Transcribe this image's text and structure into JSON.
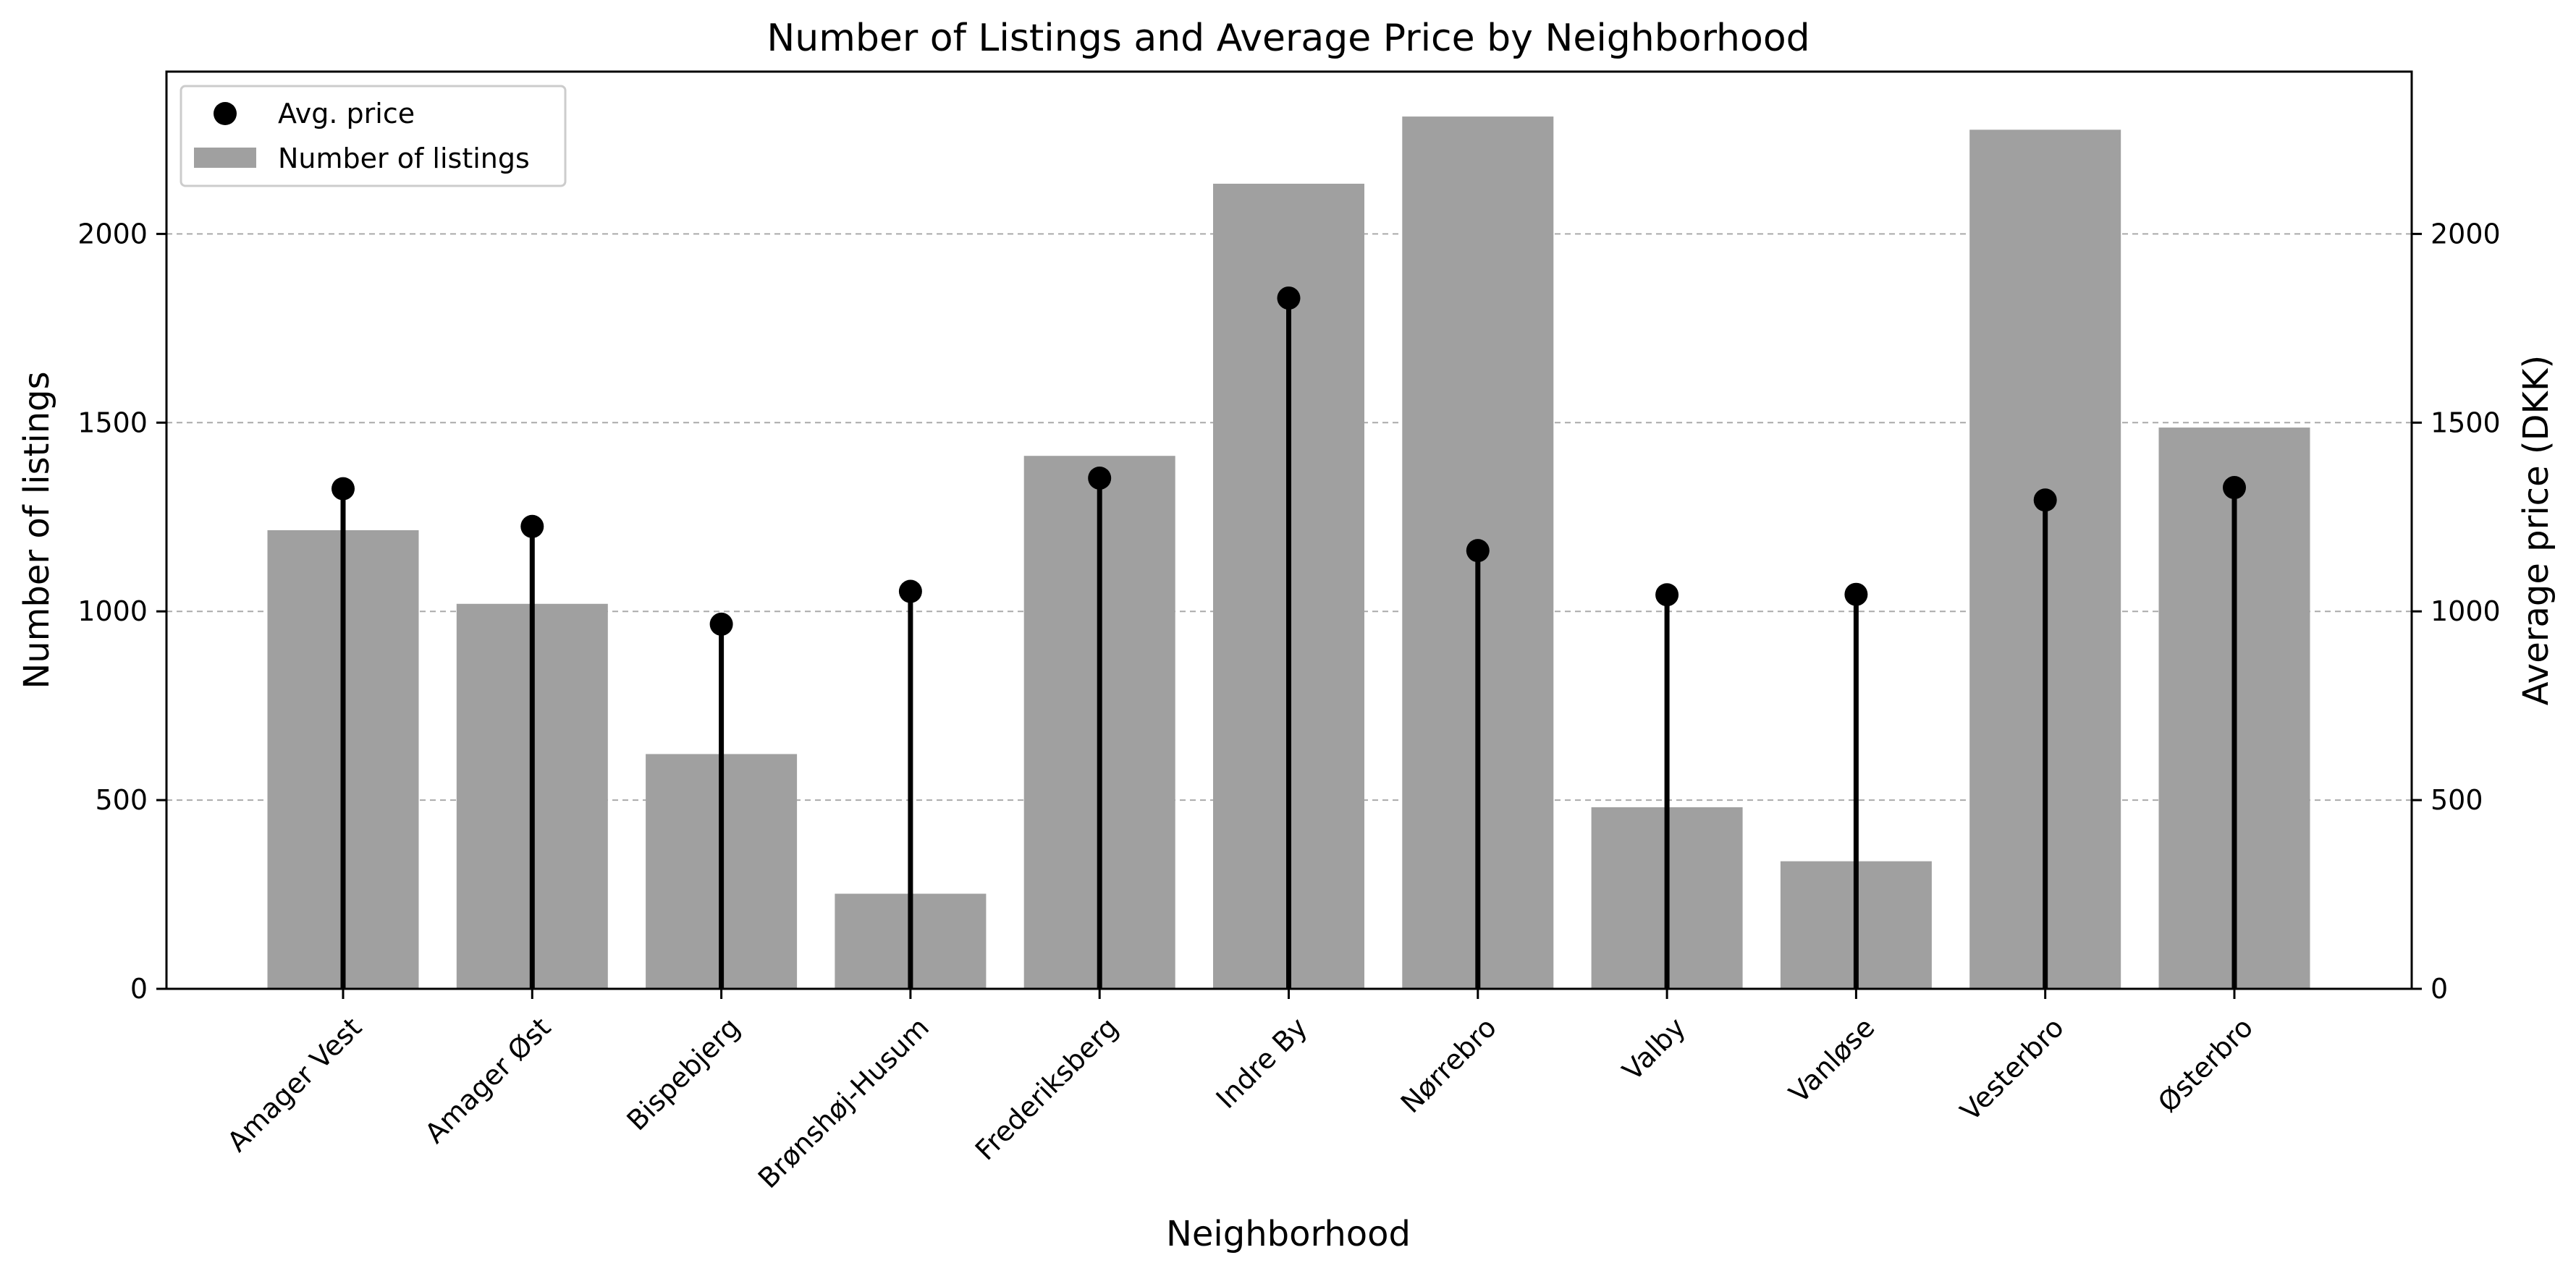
{
  "chart_data": {
    "type": "bar",
    "title": "Number of Listings and Average Price by Neighborhood",
    "xlabel": "Neighborhood",
    "ylabel_left": "Number of listings",
    "ylabel_right": "Average price (DKK)",
    "categories": [
      "Amager Vest",
      "Amager Øst",
      "Bispebjerg",
      "Brønshøj-Husum",
      "Frederiksberg",
      "Indre By",
      "Nørrebro",
      "Valby",
      "Vanløse",
      "Vesterbro",
      "Østerbro"
    ],
    "series": [
      {
        "name": "Number of listings",
        "axis": "left",
        "kind": "bar",
        "color": "#a0a0a0",
        "values": [
          1215,
          1020,
          622,
          252,
          1412,
          2133,
          2311,
          481,
          338,
          2276,
          1487
        ]
      },
      {
        "name": "Avg. price",
        "axis": "right",
        "kind": "lollipop",
        "color": "#000000",
        "values": [
          1325,
          1225,
          966,
          1053,
          1353,
          1830,
          1161,
          1044,
          1045,
          1295,
          1328
        ]
      }
    ],
    "ylim_left": [
      0,
      2430
    ],
    "ylim_right": [
      0,
      2430
    ],
    "yticks": [
      0,
      500,
      1000,
      1500,
      2000
    ],
    "grid": "horizontal dashed",
    "legend_position": "top-left"
  }
}
